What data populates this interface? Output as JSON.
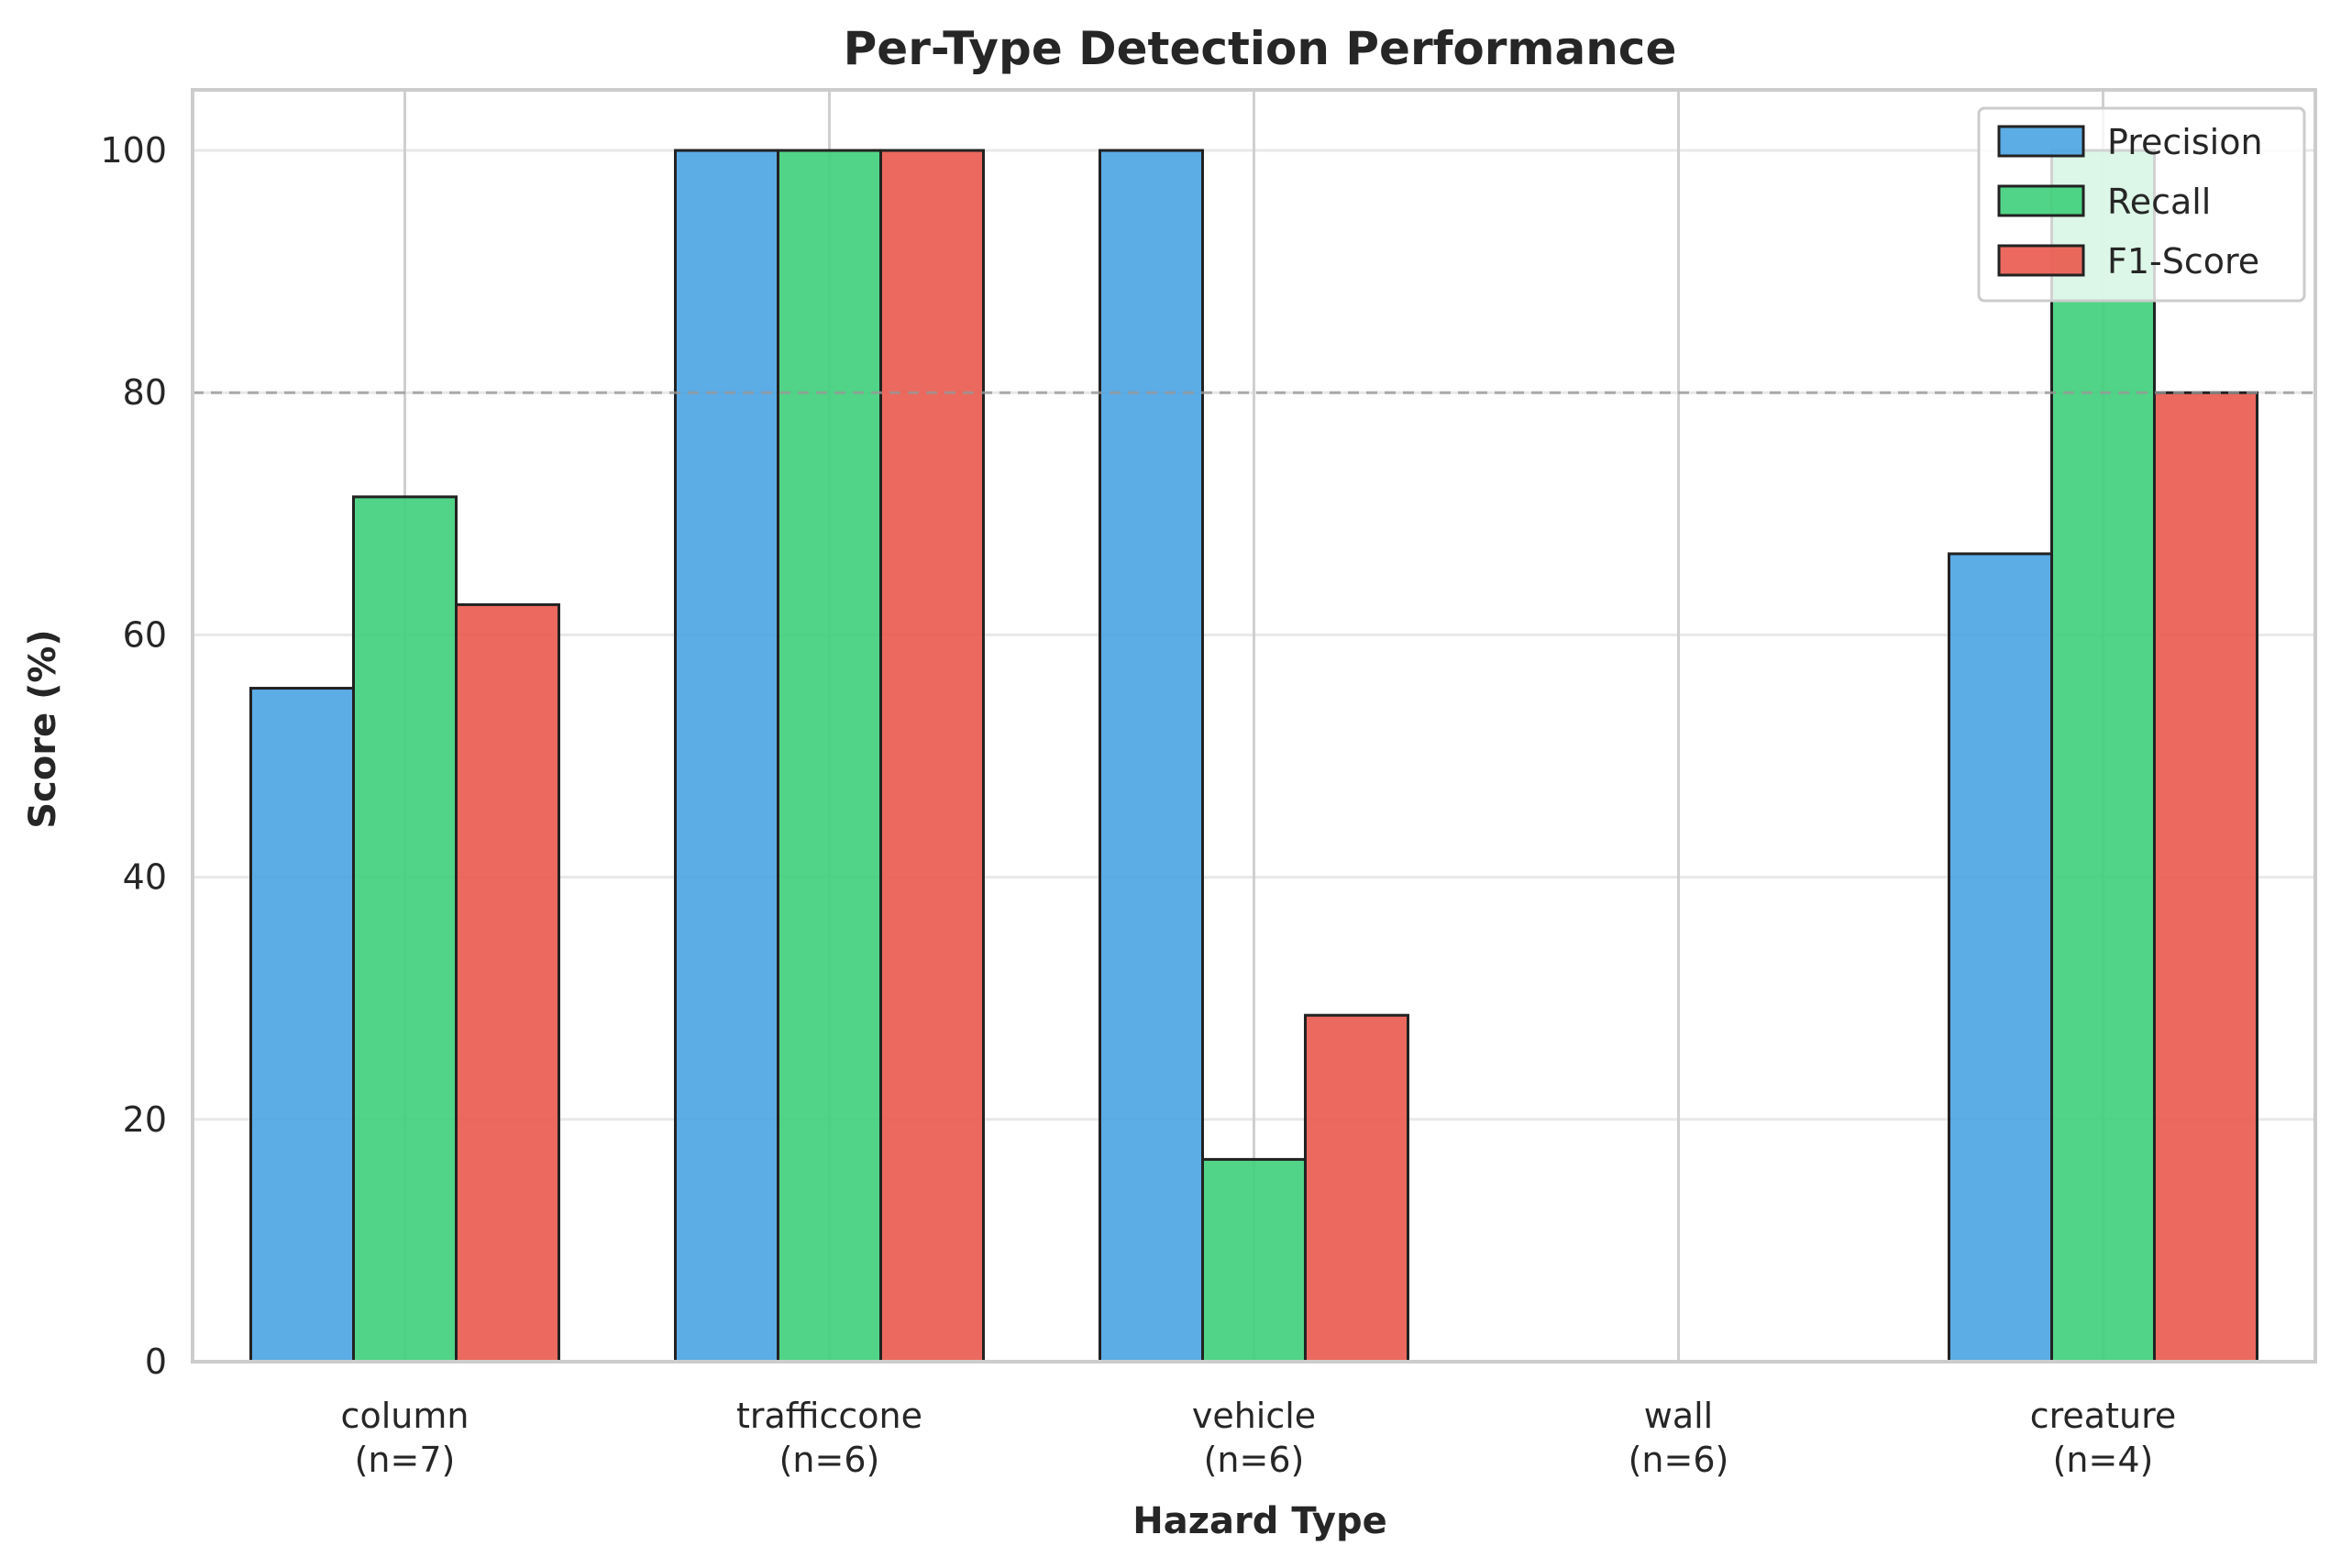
{
  "chart_data": {
    "type": "bar",
    "title": "Per-Type Detection Performance",
    "xlabel": "Hazard Type",
    "ylabel": "Score (%)",
    "categories": [
      "column",
      "trafficcone",
      "vehicle",
      "wall",
      "creature"
    ],
    "category_counts": [
      "(n=7)",
      "(n=6)",
      "(n=6)",
      "(n=6)",
      "(n=4)"
    ],
    "ylim": [
      0,
      105
    ],
    "yticks": [
      0,
      20,
      40,
      60,
      80,
      100
    ],
    "reference_line": 80,
    "grid": true,
    "legend_position": "top-right",
    "series": [
      {
        "name": "Precision",
        "color": "#4aa3e3",
        "values": [
          55.6,
          100,
          100,
          0,
          66.7
        ]
      },
      {
        "name": "Recall",
        "color": "#3ecf7a",
        "values": [
          71.4,
          100,
          16.7,
          0,
          100
        ]
      },
      {
        "name": "F1-Score",
        "color": "#e9594c",
        "values": [
          62.5,
          100,
          28.6,
          0,
          80
        ]
      }
    ]
  }
}
